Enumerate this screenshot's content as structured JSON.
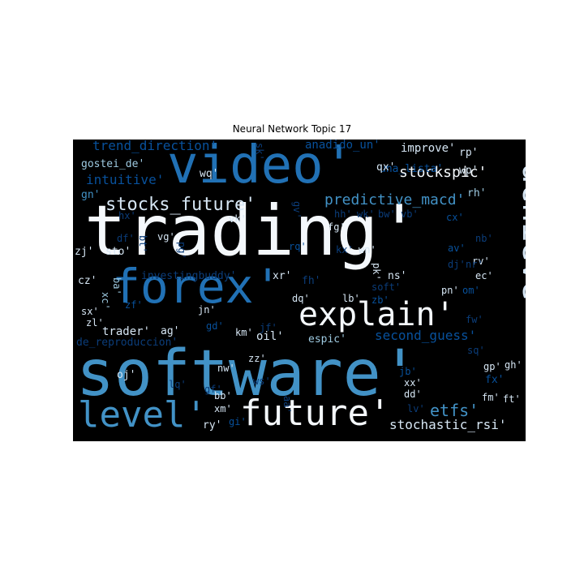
{
  "title": "Neural Network Topic 17",
  "colors": {
    "background": "#000000",
    "white": "#f4f8fc",
    "pale": "#d6e6f4",
    "light": "#9ecae1",
    "mid": "#4292c6",
    "blue": "#2171b5",
    "dark": "#08519c",
    "deep": "#0b3d7a"
  },
  "words": [
    {
      "text": "trading'",
      "size": 86,
      "color": "white"
    },
    {
      "text": "software'",
      "size": 78,
      "color": "mid"
    },
    {
      "text": "video'",
      "size": 64,
      "color": "blue"
    },
    {
      "text": "forex'",
      "size": 58,
      "color": "blue"
    },
    {
      "text": "achieve'",
      "size": 40,
      "color": "pale",
      "orientation": "vertical"
    },
    {
      "text": "explain'",
      "size": 40,
      "color": "white"
    },
    {
      "text": "future'",
      "size": 44,
      "color": "white"
    },
    {
      "text": "level'",
      "size": 44,
      "color": "mid"
    },
    {
      "text": "stocks_future'",
      "size": 22,
      "color": "pale"
    },
    {
      "text": "predictive_macd'",
      "size": 18,
      "color": "mid"
    },
    {
      "text": "stockspic'",
      "size": 18,
      "color": "white"
    },
    {
      "text": "trend_direction'",
      "size": 16,
      "color": "dark"
    },
    {
      "text": "intuitive'",
      "size": 16,
      "color": "dark"
    },
    {
      "text": "anadido_un'",
      "size": 14,
      "color": "dark"
    },
    {
      "text": "improve'",
      "size": 14,
      "color": "pale"
    },
    {
      "text": "gostei_de'",
      "size": 13,
      "color": "light"
    },
    {
      "text": "una_lista'",
      "size": 13,
      "color": "dark"
    },
    {
      "text": "investingbuddy'",
      "size": 13,
      "color": "deep"
    },
    {
      "text": "second_guess'",
      "size": 16,
      "color": "dark"
    },
    {
      "text": "de_reproduccion'",
      "size": 13,
      "color": "deep"
    },
    {
      "text": "stochastic_rsi'",
      "size": 16,
      "color": "pale"
    },
    {
      "text": "etfs'",
      "size": 20,
      "color": "mid"
    },
    {
      "text": "trader'",
      "size": 14,
      "color": "pale"
    },
    {
      "text": "oil'",
      "size": 14,
      "color": "pale"
    },
    {
      "text": "espic'",
      "size": 13,
      "color": "light"
    },
    {
      "text": "wq'",
      "size": 13,
      "color": "pale"
    },
    {
      "text": "gn'",
      "size": 13,
      "color": "mid"
    },
    {
      "text": "qx'",
      "size": 13,
      "color": "pale"
    },
    {
      "text": "rp'",
      "size": 13,
      "color": "pale"
    },
    {
      "text": "wp'",
      "size": 13,
      "color": "pale"
    },
    {
      "text": "rh'",
      "size": 13,
      "color": "light"
    },
    {
      "text": "hh'",
      "size": 12,
      "color": "deep"
    },
    {
      "text": "wk'",
      "size": 12,
      "color": "deep"
    },
    {
      "text": "bw'",
      "size": 12,
      "color": "deep"
    },
    {
      "text": "vb'",
      "size": 12,
      "color": "deep"
    },
    {
      "text": "cx'",
      "size": 12,
      "color": "dark"
    },
    {
      "text": "hx'",
      "size": 12,
      "color": "deep"
    },
    {
      "text": "vk'",
      "size": 12,
      "color": "pale"
    },
    {
      "text": "fg'",
      "size": 12,
      "color": "pale"
    },
    {
      "text": "df'",
      "size": 12,
      "color": "deep"
    },
    {
      "text": "vg'",
      "size": 12,
      "color": "pale"
    },
    {
      "text": "zj'",
      "size": 13,
      "color": "pale"
    },
    {
      "text": "sto'",
      "size": 13,
      "color": "pale"
    },
    {
      "text": "pg'",
      "size": 12,
      "color": "deep",
      "orientation": "vertical"
    },
    {
      "text": "bt'",
      "size": 12,
      "color": "deep",
      "orientation": "vertical"
    },
    {
      "text": "rq'",
      "size": 12,
      "color": "dark"
    },
    {
      "text": "kx'",
      "size": 12,
      "color": "deep"
    },
    {
      "text": "wn'",
      "size": 12,
      "color": "pale"
    },
    {
      "text": "nb'",
      "size": 12,
      "color": "deep"
    },
    {
      "text": "av'",
      "size": 12,
      "color": "dark"
    },
    {
      "text": "rv'",
      "size": 12,
      "color": "pale"
    },
    {
      "text": "dj'",
      "size": 12,
      "color": "deep"
    },
    {
      "text": "cz'",
      "size": 13,
      "color": "pale"
    },
    {
      "text": "xr'",
      "size": 13,
      "color": "pale"
    },
    {
      "text": "pk'",
      "size": 12,
      "color": "pale",
      "orientation": "vertical"
    },
    {
      "text": "ns'",
      "size": 13,
      "color": "pale"
    },
    {
      "text": "fh'",
      "size": 13,
      "color": "deep"
    },
    {
      "text": "ec'",
      "size": 12,
      "color": "pale"
    },
    {
      "text": "om'",
      "size": 12,
      "color": "dark"
    },
    {
      "text": "pn'",
      "size": 12,
      "color": "pale"
    },
    {
      "text": "ba'",
      "size": 12,
      "color": "light",
      "orientation": "vertical"
    },
    {
      "text": "xc'",
      "size": 12,
      "color": "light",
      "orientation": "vertical"
    },
    {
      "text": "sx'",
      "size": 12,
      "color": "pale"
    },
    {
      "text": "zf'",
      "size": 12,
      "color": "dark"
    },
    {
      "text": "dq'",
      "size": 12,
      "color": "pale"
    },
    {
      "text": "lb'",
      "size": 12,
      "color": "pale"
    },
    {
      "text": "soft'",
      "size": 12,
      "color": "deep"
    },
    {
      "text": "zb'",
      "size": 12,
      "color": "dark"
    },
    {
      "text": "jn'",
      "size": 12,
      "color": "pale"
    },
    {
      "text": "zl'",
      "size": 12,
      "color": "pale"
    },
    {
      "text": "gd'",
      "size": 12,
      "color": "dark"
    },
    {
      "text": "ag'",
      "size": 13,
      "color": "pale"
    },
    {
      "text": "km'",
      "size": 12,
      "color": "pale"
    },
    {
      "text": "jf'",
      "size": 12,
      "color": "deep"
    },
    {
      "text": "fw'",
      "size": 12,
      "color": "deep"
    },
    {
      "text": "sq'",
      "size": 12,
      "color": "deep"
    },
    {
      "text": "oj'",
      "size": 13,
      "color": "pale"
    },
    {
      "text": "nw'",
      "size": 12,
      "color": "pale"
    },
    {
      "text": "zz'",
      "size": 12,
      "color": "pale"
    },
    {
      "text": "gp'",
      "size": 12,
      "color": "pale"
    },
    {
      "text": "gh'",
      "size": 12,
      "color": "pale"
    },
    {
      "text": "jb'",
      "size": 12,
      "color": "dark"
    },
    {
      "text": "xx'",
      "size": 12,
      "color": "pale"
    },
    {
      "text": "lq'",
      "size": 12,
      "color": "deep"
    },
    {
      "text": "gf'",
      "size": 12,
      "color": "deep"
    },
    {
      "text": "bb'",
      "size": 12,
      "color": "pale"
    },
    {
      "text": "ws'",
      "size": 12,
      "color": "deep"
    },
    {
      "text": "fx'",
      "size": 13,
      "color": "dark"
    },
    {
      "text": "dd'",
      "size": 12,
      "color": "pale"
    },
    {
      "text": "fm'",
      "size": 12,
      "color": "pale"
    },
    {
      "text": "ft'",
      "size": 12,
      "color": "pale"
    },
    {
      "text": "xm'",
      "size": 12,
      "color": "pale"
    },
    {
      "text": "aa'",
      "size": 12,
      "color": "deep",
      "orientation": "vertical"
    },
    {
      "text": "lv'",
      "size": 12,
      "color": "deep"
    },
    {
      "text": "ry'",
      "size": 13,
      "color": "pale"
    },
    {
      "text": "gi'",
      "size": 12,
      "color": "dark"
    },
    {
      "text": "sk'",
      "size": 12,
      "color": "deep",
      "orientation": "vertical"
    },
    {
      "text": "gv'",
      "size": 12,
      "color": "deep",
      "orientation": "vertical"
    },
    {
      "text": "nr'",
      "size": 12,
      "color": "deep"
    }
  ]
}
